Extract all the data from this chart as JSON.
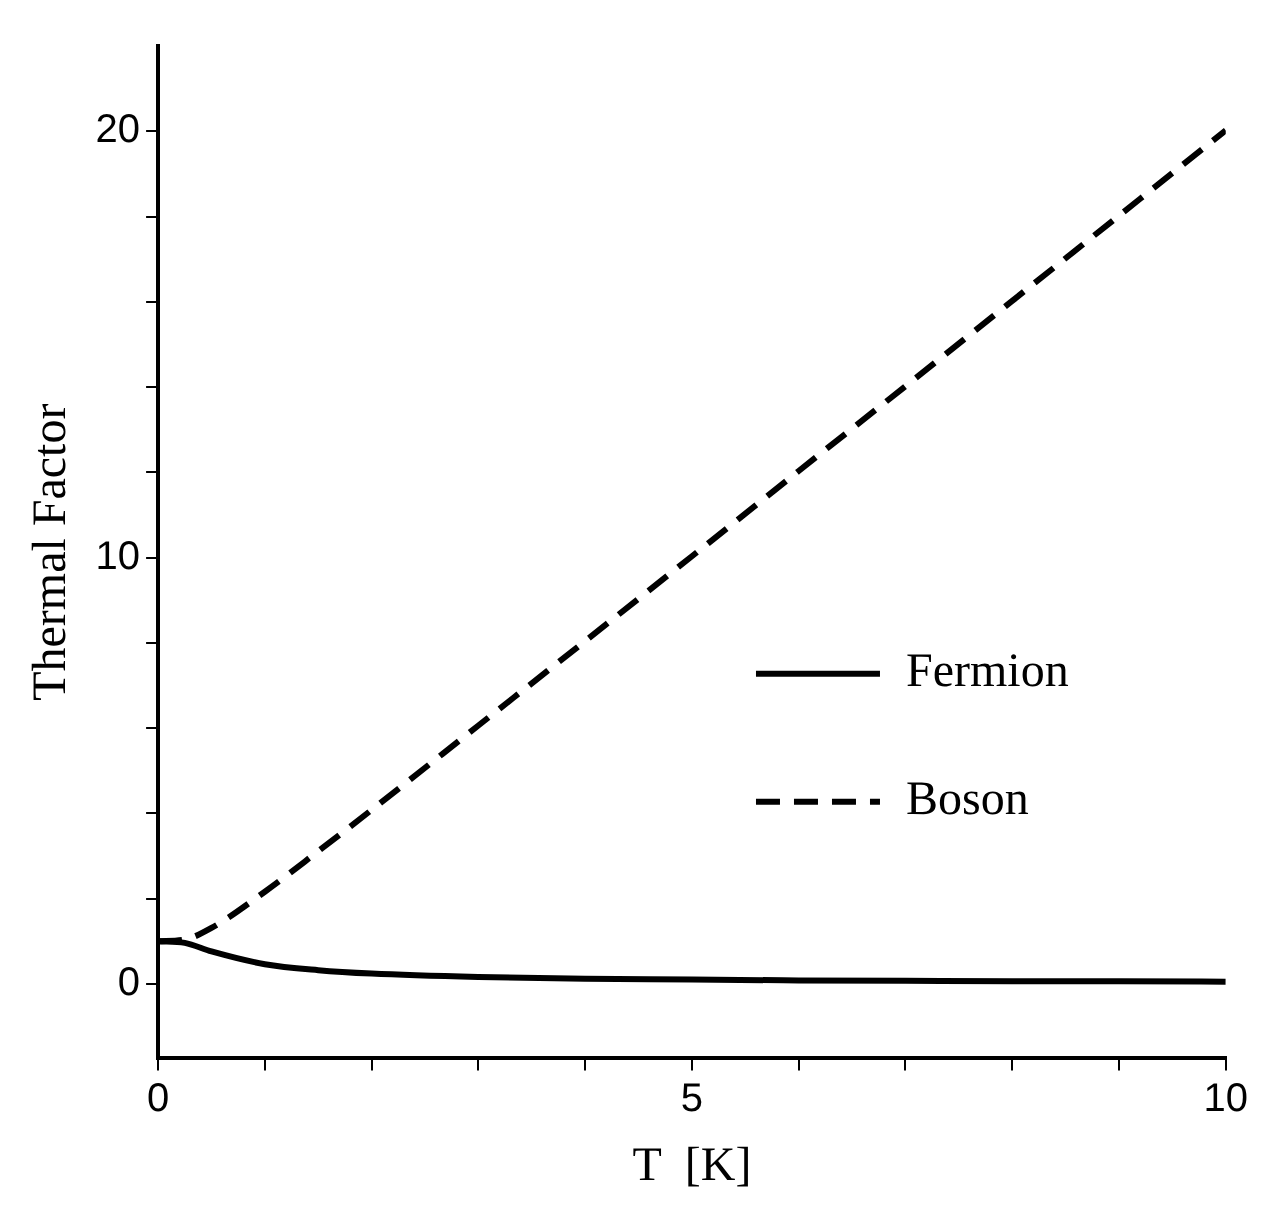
{
  "chart_data": {
    "type": "line",
    "xlabel": "T  [K]",
    "ylabel": "Thermal Factor",
    "x": [
      0,
      0.25,
      0.5,
      1,
      1.5,
      2,
      3,
      4,
      5,
      6,
      7,
      8,
      9,
      10
    ],
    "series": [
      {
        "name": "Fermion",
        "color": "#000000",
        "line_style": "solid",
        "values": [
          1,
          0.96,
          0.76,
          0.46,
          0.32,
          0.24,
          0.16,
          0.12,
          0.1,
          0.08,
          0.07,
          0.06,
          0.06,
          0.05
        ]
      },
      {
        "name": "Boson",
        "color": "#000000",
        "line_style": "dashed",
        "values": [
          1,
          1.04,
          1.31,
          2.16,
          3.11,
          4.08,
          6.06,
          8.04,
          10.03,
          12.03,
          14.02,
          16.02,
          18.02,
          20.02
        ]
      }
    ],
    "xlim": [
      0,
      10
    ],
    "xticks": [
      0,
      {
        "value": 1,
        "label": null
      },
      {
        "value": 2,
        "label": null
      },
      {
        "value": 3,
        "label": null
      },
      {
        "value": 4,
        "label": null
      },
      5,
      {
        "value": 6,
        "label": null
      },
      {
        "value": 7,
        "label": null
      },
      {
        "value": 8,
        "label": null
      },
      {
        "value": 9,
        "label": null
      },
      10
    ],
    "ylim": [
      -1.75,
      22
    ],
    "yticks": [
      0,
      {
        "value": 2,
        "label": null
      },
      {
        "value": 4,
        "label": null
      },
      {
        "value": 6,
        "label": null
      },
      {
        "value": 8,
        "label": null
      },
      10,
      {
        "value": 12,
        "label": null
      },
      {
        "value": 14,
        "label": null
      },
      {
        "value": 16,
        "label": null
      },
      {
        "value": 18,
        "label": null
      },
      20
    ],
    "grid": false,
    "legend": "right",
    "marker": "none"
  }
}
